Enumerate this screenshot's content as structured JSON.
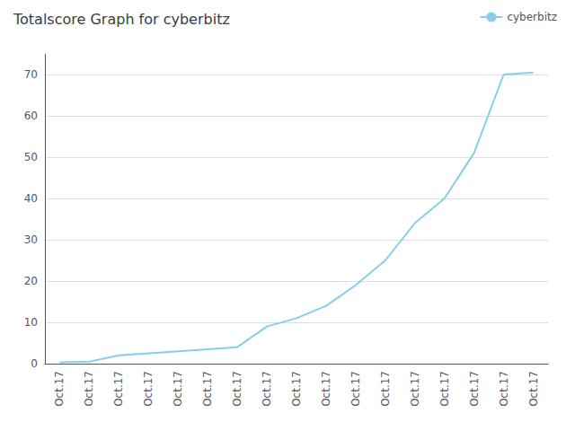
{
  "chart_data": {
    "type": "line",
    "title": "Totalscore Graph for cyberbitz",
    "categories": [
      "Oct.17",
      "Oct.17",
      "Oct.17",
      "Oct.17",
      "Oct.17",
      "Oct.17",
      "Oct.17",
      "Oct.17",
      "Oct.17",
      "Oct.17",
      "Oct.17",
      "Oct.17",
      "Oct.17",
      "Oct.17",
      "Oct.17",
      "Oct.17",
      "Oct.17"
    ],
    "series": [
      {
        "name": "cyberbitz",
        "color": "#87CEEB",
        "values": [
          0.3,
          0.5,
          2.0,
          2.5,
          3.0,
          3.5,
          4.0,
          9.0,
          11.0,
          14.0,
          19.0,
          25.0,
          34.0,
          40.0,
          51.0,
          70.0,
          70.5
        ]
      }
    ],
    "ylim": [
      0,
      75
    ],
    "yticks": [
      0,
      10,
      20,
      30,
      40,
      50,
      60,
      70
    ],
    "grid": true,
    "legend": "upper right"
  }
}
